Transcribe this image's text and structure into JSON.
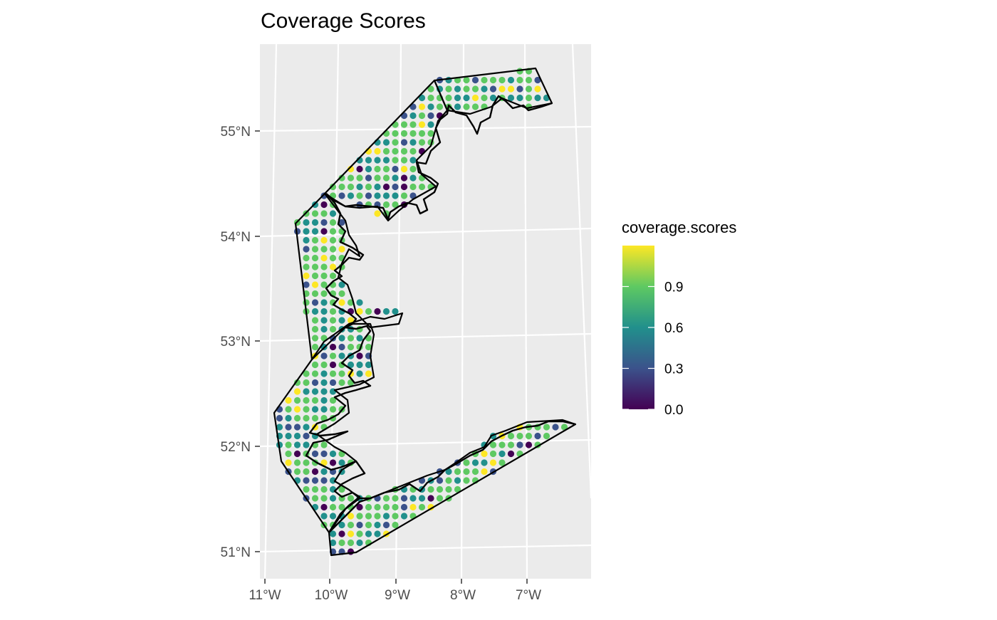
{
  "title": "Coverage Scores",
  "y_axis_labels": [
    "55°N",
    "54°N",
    "53°N",
    "52°N",
    "51°N"
  ],
  "x_axis_labels": [
    "11°W",
    "10°W",
    "9°W",
    "8°W",
    "7°W"
  ],
  "legend": {
    "title": "coverage.scores",
    "ticks": [
      "0.9",
      "0.6",
      "0.3",
      "0.0"
    ],
    "range": [
      0,
      1.2
    ],
    "tick_values": [
      0.9,
      0.6,
      0.3,
      0.0
    ]
  },
  "colors": {
    "panel_background": "#ebebeb",
    "grid": "#ffffff",
    "outline": "#000000",
    "viridis": [
      "#440154",
      "#3b528b",
      "#21908c",
      "#5ec962",
      "#fde725"
    ]
  }
}
